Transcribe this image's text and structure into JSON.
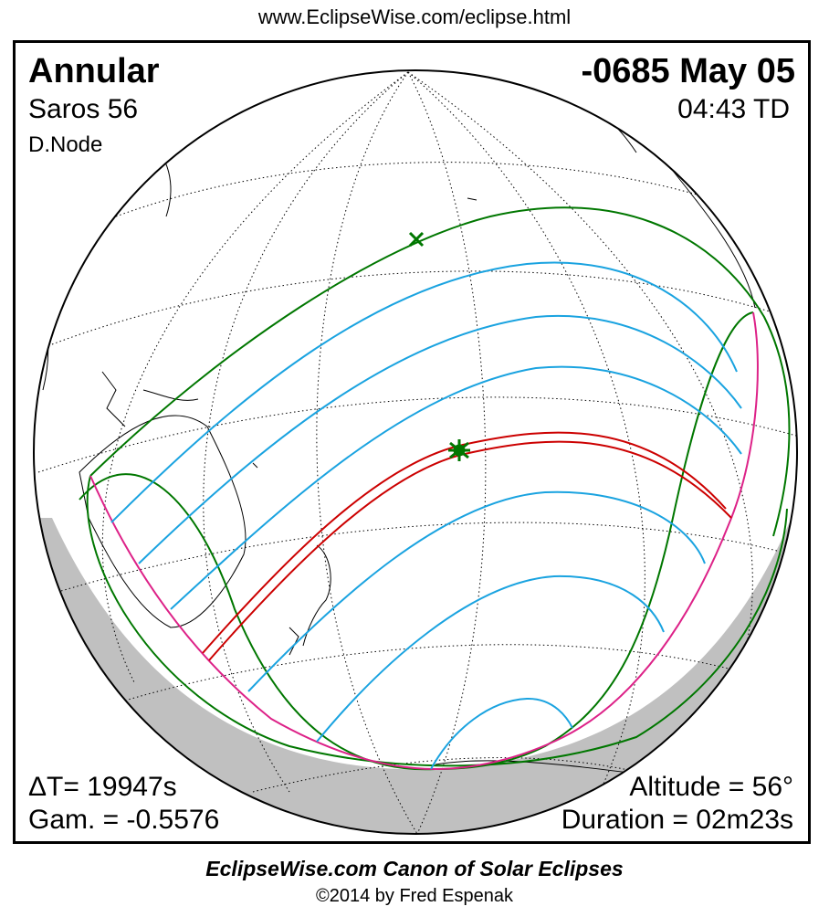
{
  "header": {
    "url": "www.EclipseWise.com/eclipse.html"
  },
  "eclipse": {
    "type": "Annular",
    "saros": "Saros  56",
    "node": "D.Node",
    "date": "-0685 May 05",
    "time": "04:43 TD",
    "delta_t": "ΔT=  19947s",
    "gamma": "Gam. = -0.5576",
    "altitude": "Altitude = 56°",
    "duration": "Duration = 02m23s"
  },
  "footer": {
    "canon": "EclipseWise.com Canon of Solar Eclipses",
    "copyright": "©2014 by Fred Espenak"
  },
  "colors": {
    "central_path": "#cc0000",
    "penumbral_limits": "#007700",
    "magnitude_curves": "#1aa3e0",
    "rise_set_curves": "#dd2288",
    "night_shading": "#c0c0c0",
    "greatest_eclipse_marker": "#007700"
  },
  "markers": [
    "greatest-eclipse-star",
    "greatest-duration-x"
  ]
}
